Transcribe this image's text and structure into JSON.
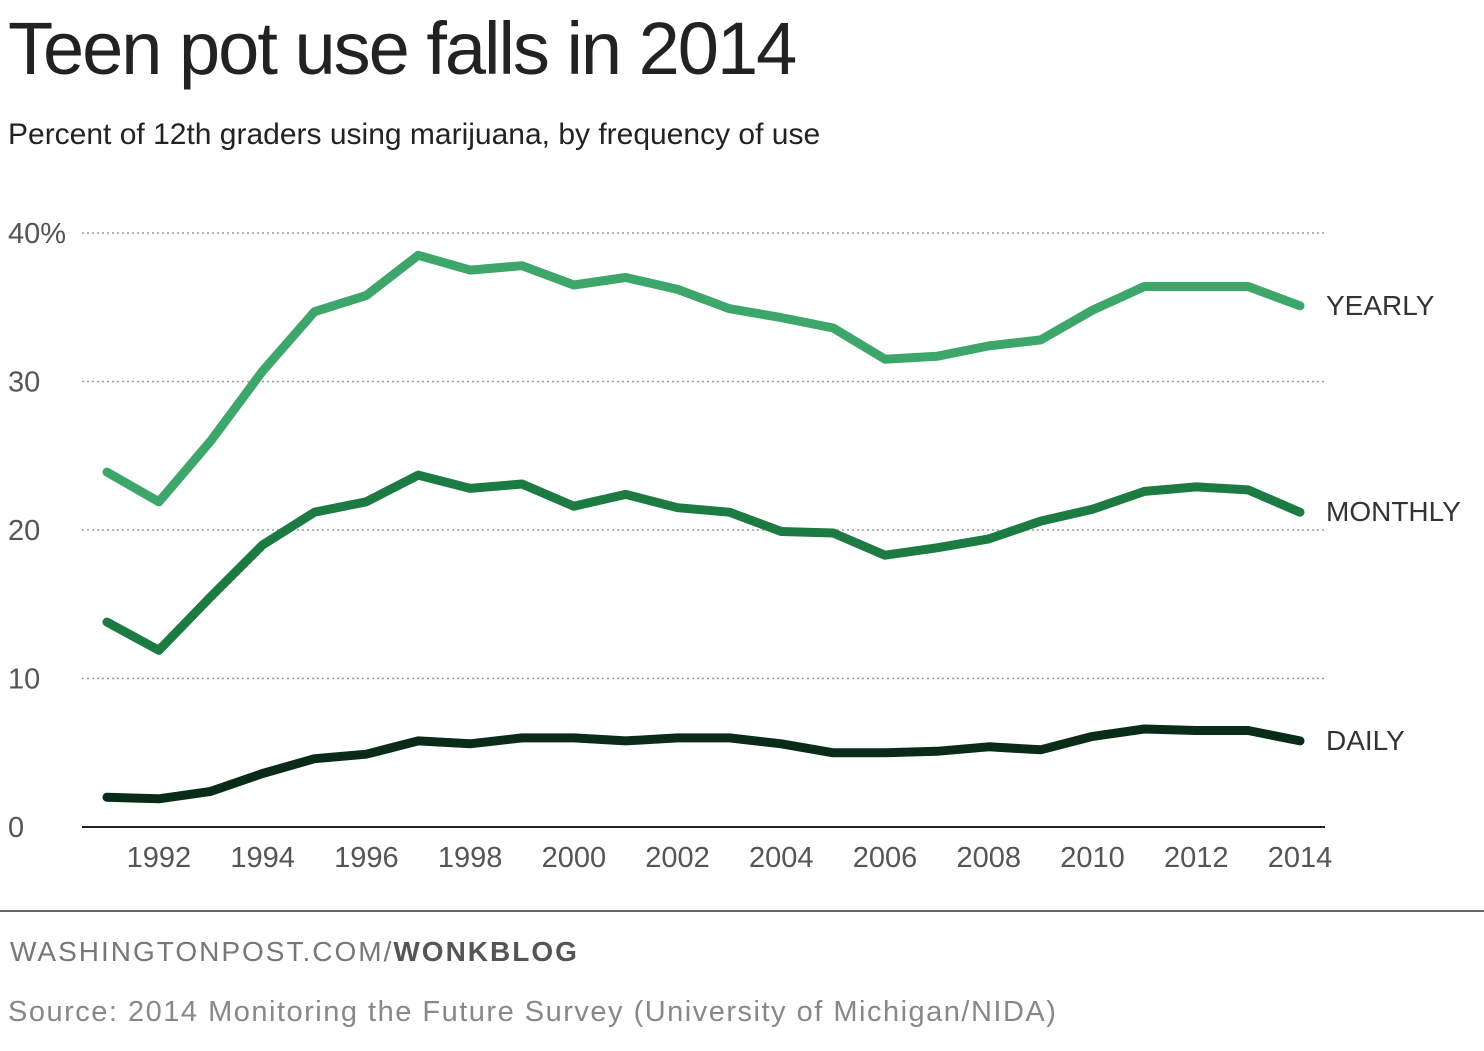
{
  "chart_data": {
    "type": "line",
    "title": "Teen pot use falls in 2014",
    "subtitle": "Percent of 12th graders using marijuana, by frequency of use",
    "x": [
      1991,
      1992,
      1993,
      1994,
      1995,
      1996,
      1997,
      1998,
      1999,
      2000,
      2001,
      2002,
      2003,
      2004,
      2005,
      2006,
      2007,
      2008,
      2009,
      2010,
      2011,
      2012,
      2013,
      2014
    ],
    "xticks": [
      1992,
      1994,
      1996,
      1998,
      2000,
      2002,
      2004,
      2006,
      2008,
      2010,
      2012,
      2014
    ],
    "xtick_labels": [
      "1992",
      "1994",
      "1996",
      "1998",
      "2000",
      "2002",
      "2004",
      "2006",
      "2008",
      "2010",
      "2012",
      "2014"
    ],
    "yticks": [
      0,
      10,
      20,
      30,
      40
    ],
    "ytick_labels": [
      "0",
      "10",
      "20",
      "30",
      "40%"
    ],
    "xlim": [
      1991,
      2014
    ],
    "ylim": [
      0,
      40
    ],
    "grid": "horizontal dotted",
    "legend": "direct labels at line ends",
    "series": [
      {
        "name": "YEARLY",
        "color": "#3da66a",
        "values": [
          23.9,
          21.9,
          26.0,
          30.7,
          34.7,
          35.8,
          38.5,
          37.5,
          37.8,
          36.5,
          37.0,
          36.2,
          34.9,
          34.3,
          33.6,
          31.5,
          31.7,
          32.4,
          32.8,
          34.8,
          36.4,
          36.4,
          36.4,
          35.1
        ]
      },
      {
        "name": "MONTHLY",
        "color": "#1c7a43",
        "values": [
          13.8,
          11.9,
          15.5,
          19.0,
          21.2,
          21.9,
          23.7,
          22.8,
          23.1,
          21.6,
          22.4,
          21.5,
          21.2,
          19.9,
          19.8,
          18.3,
          18.8,
          19.4,
          20.6,
          21.4,
          22.6,
          22.9,
          22.7,
          21.2
        ]
      },
      {
        "name": "DAILY",
        "color": "#0a2b18",
        "values": [
          2.0,
          1.9,
          2.4,
          3.6,
          4.6,
          4.9,
          5.8,
          5.6,
          6.0,
          6.0,
          5.8,
          6.0,
          6.0,
          5.6,
          5.0,
          5.0,
          5.1,
          5.4,
          5.2,
          6.1,
          6.6,
          6.5,
          6.5,
          5.8
        ]
      }
    ]
  },
  "footer": {
    "credit_prefix": "WASHINGTONPOST.COM/",
    "credit_bold": "WONKBLOG",
    "source": "Source: 2014 Monitoring the Future Survey (University of Michigan/NIDA)"
  }
}
